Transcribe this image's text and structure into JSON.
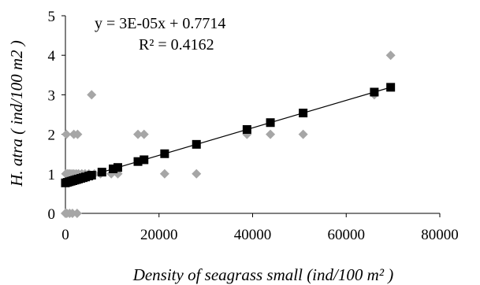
{
  "chart_data": {
    "type": "scatter",
    "xlabel": "Density of seagrass small (ind/100 m² )",
    "ylabel": "H. atra ( ind/100 m2 )",
    "xlim": [
      0,
      80000
    ],
    "ylim": [
      0,
      5
    ],
    "xticks": [
      "0",
      "20000",
      "40000",
      "60000",
      "80000"
    ],
    "yticks": [
      "0",
      "1",
      "2",
      "3",
      "4",
      "5"
    ],
    "grid": false,
    "legend": "none",
    "equation": "y = 3E-05x + 0.7714",
    "r_squared": "R² = 0.4162",
    "trendline": {
      "slope": 3.48e-05,
      "intercept": 0.7714
    },
    "series": [
      {
        "marker": "diamond",
        "color": "#a6a6a6",
        "points": [
          [
            0,
            0
          ],
          [
            300,
            0
          ],
          [
            900,
            0
          ],
          [
            1500,
            0
          ],
          [
            2500,
            0
          ],
          [
            100,
            1
          ],
          [
            400,
            1
          ],
          [
            700,
            1
          ],
          [
            1000,
            1
          ],
          [
            1400,
            1
          ],
          [
            1800,
            1
          ],
          [
            2300,
            1
          ],
          [
            2800,
            1
          ],
          [
            3500,
            1
          ],
          [
            4200,
            1
          ],
          [
            5000,
            1
          ],
          [
            6200,
            1
          ],
          [
            7500,
            1
          ],
          [
            9800,
            1
          ],
          [
            11200,
            1
          ],
          [
            21200,
            1
          ],
          [
            28000,
            1
          ],
          [
            200,
            2
          ],
          [
            1800,
            2
          ],
          [
            2600,
            2
          ],
          [
            15500,
            2
          ],
          [
            16800,
            2
          ],
          [
            38800,
            2
          ],
          [
            43800,
            2
          ],
          [
            50800,
            2
          ],
          [
            5600,
            3
          ],
          [
            66000,
            3
          ],
          [
            69500,
            4
          ]
        ]
      },
      {
        "marker": "square",
        "color": "#000000",
        "points": [
          [
            0,
            0.771
          ],
          [
            400,
            0.785
          ],
          [
            800,
            0.799
          ],
          [
            1200,
            0.813
          ],
          [
            1600,
            0.827
          ],
          [
            2000,
            0.841
          ],
          [
            2400,
            0.855
          ],
          [
            2800,
            0.869
          ],
          [
            3300,
            0.886
          ],
          [
            3800,
            0.903
          ],
          [
            4300,
            0.921
          ],
          [
            5000,
            0.945
          ],
          [
            5600,
            0.966
          ],
          [
            7800,
            1.043
          ],
          [
            10200,
            1.126
          ],
          [
            11200,
            1.161
          ],
          [
            15500,
            1.311
          ],
          [
            16800,
            1.356
          ],
          [
            21200,
            1.509
          ],
          [
            28000,
            1.746
          ],
          [
            38800,
            2.122
          ],
          [
            43800,
            2.296
          ],
          [
            50800,
            2.539
          ],
          [
            66000,
            3.068
          ],
          [
            69500,
            3.19
          ]
        ]
      }
    ]
  }
}
